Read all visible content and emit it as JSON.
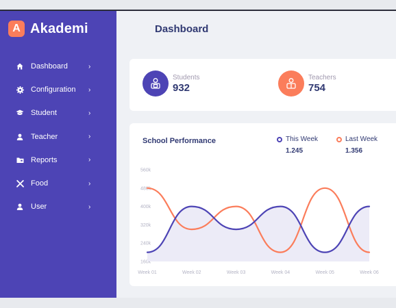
{
  "app": {
    "logo_letter": "A",
    "name": "Akademi"
  },
  "sidebar": {
    "items": [
      {
        "label": "Dashboard",
        "icon": "home-icon"
      },
      {
        "label": "Configuration",
        "icon": "gear-icon"
      },
      {
        "label": "Student",
        "icon": "graduation-cap-icon"
      },
      {
        "label": "Teacher",
        "icon": "user-icon"
      },
      {
        "label": "Reports",
        "icon": "folder-icon"
      },
      {
        "label": "Food",
        "icon": "utensils-icon"
      },
      {
        "label": "User",
        "icon": "user-icon"
      }
    ]
  },
  "header": {
    "title": "Dashboard"
  },
  "stats": {
    "students": {
      "label": "Students",
      "value": "932",
      "color": "#4d44b5",
      "icon": "student-icon"
    },
    "teachers": {
      "label": "Teachers",
      "value": "754",
      "color": "#fb7d5b",
      "icon": "teacher-icon"
    }
  },
  "performance": {
    "title": "School Performance",
    "legend": [
      {
        "name": "This Week",
        "value": "1.245",
        "color": "#4d44b5"
      },
      {
        "name": "Last Week",
        "value": "1.356",
        "color": "#fb7d5b"
      }
    ]
  },
  "chart_data": {
    "type": "line",
    "x": [
      "Week 01",
      "Week 02",
      "Week 03",
      "Week 04",
      "Week 05",
      "Week 06"
    ],
    "yticks": [
      "160k",
      "240k",
      "320k",
      "400k",
      "480k",
      "560k"
    ],
    "ylim": [
      160,
      560
    ],
    "series": [
      {
        "name": "This Week",
        "color": "#4d44b5",
        "fill": "#ecebf7",
        "values": [
          200,
          400,
          300,
          400,
          200,
          400
        ]
      },
      {
        "name": "Last Week",
        "color": "#fb7d5b",
        "values": [
          480,
          300,
          400,
          200,
          480,
          200
        ]
      }
    ],
    "grid": false
  }
}
